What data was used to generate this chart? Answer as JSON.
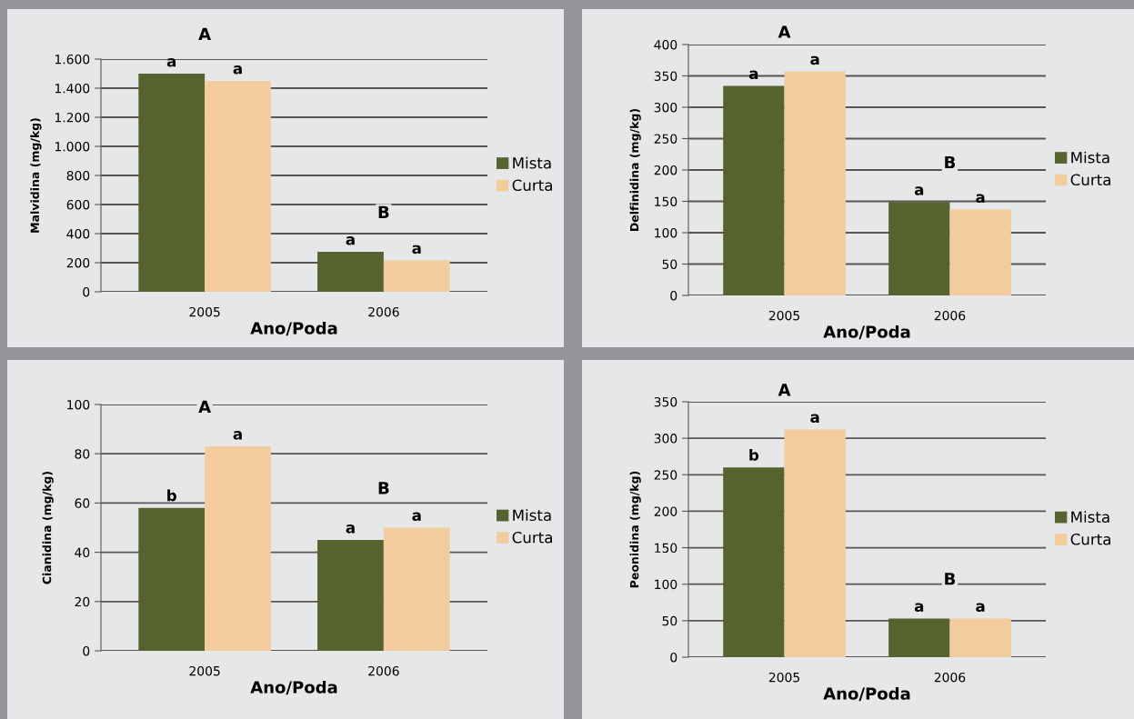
{
  "chart_data": [
    {
      "type": "bar",
      "ylabel": "Malvidina (mg/kg)",
      "xlabel": "Ano/Poda",
      "categories": [
        "2005",
        "2006"
      ],
      "series": [
        {
          "name": "Mista",
          "color": "#56632f",
          "values": [
            1500,
            275
          ],
          "value_labels": [
            "a",
            "a"
          ]
        },
        {
          "name": "Curta",
          "color": "#f2cc9c",
          "values": [
            1450,
            215
          ],
          "value_labels": [
            "a",
            "a"
          ]
        }
      ],
      "ylim": [
        0,
        1600
      ],
      "yticks": [
        {
          "value": 0,
          "label": "0"
        },
        {
          "value": 200,
          "label": "200"
        },
        {
          "value": 400,
          "label": "400"
        },
        {
          "value": 600,
          "label": "600"
        },
        {
          "value": 800,
          "label": "800"
        },
        {
          "value": 1000,
          "label": "1.000"
        },
        {
          "value": 1200,
          "label": "1.200"
        },
        {
          "value": 1400,
          "label": "1.400"
        },
        {
          "value": 1600,
          "label": "1.600"
        }
      ],
      "annotations": [
        "A",
        "B"
      ],
      "grid": "y",
      "legend": "right"
    },
    {
      "type": "bar",
      "ylabel": "Delfinidina (mg/kg)",
      "xlabel": "Ano/Poda",
      "categories": [
        "2005",
        "2006"
      ],
      "series": [
        {
          "name": "Mista",
          "color": "#56632f",
          "values": [
            334,
            149
          ],
          "value_labels": [
            "a",
            "a"
          ]
        },
        {
          "name": "Curta",
          "color": "#f2cc9c",
          "values": [
            357,
            137
          ],
          "value_labels": [
            "a",
            "a"
          ]
        }
      ],
      "ylim": [
        0,
        400
      ],
      "yticks": [
        0,
        50,
        100,
        150,
        200,
        250,
        300,
        350,
        400
      ],
      "annotations": [
        "A",
        "B"
      ],
      "grid": "y",
      "legend": "right"
    },
    {
      "type": "bar",
      "ylabel": "Cianidina (mg/kg)",
      "xlabel": "Ano/Poda",
      "categories": [
        "2005",
        "2006"
      ],
      "series": [
        {
          "name": "Mista",
          "color": "#56632f",
          "values": [
            58,
            45
          ],
          "value_labels": [
            "b",
            "a"
          ]
        },
        {
          "name": "Curta",
          "color": "#f2cc9c",
          "values": [
            83,
            50
          ],
          "value_labels": [
            "a",
            "a"
          ]
        }
      ],
      "ylim": [
        0,
        100
      ],
      "yticks": [
        0,
        20,
        40,
        60,
        80,
        100
      ],
      "annotations": [
        "A",
        "B"
      ],
      "grid": "y",
      "legend": "right"
    },
    {
      "type": "bar",
      "ylabel": "Peonidina (mg/kg)",
      "xlabel": "Ano/Poda",
      "categories": [
        "2005",
        "2006"
      ],
      "series": [
        {
          "name": "Mista",
          "color": "#56632f",
          "values": [
            260,
            53
          ],
          "value_labels": [
            "b",
            "a"
          ]
        },
        {
          "name": "Curta",
          "color": "#f2cc9c",
          "values": [
            312,
            53
          ],
          "value_labels": [
            "a",
            "a"
          ]
        }
      ],
      "ylim": [
        0,
        350
      ],
      "yticks": [
        0,
        50,
        100,
        150,
        200,
        250,
        300,
        350
      ],
      "annotations": [
        "A",
        "B"
      ],
      "grid": "y",
      "legend": "right"
    }
  ]
}
